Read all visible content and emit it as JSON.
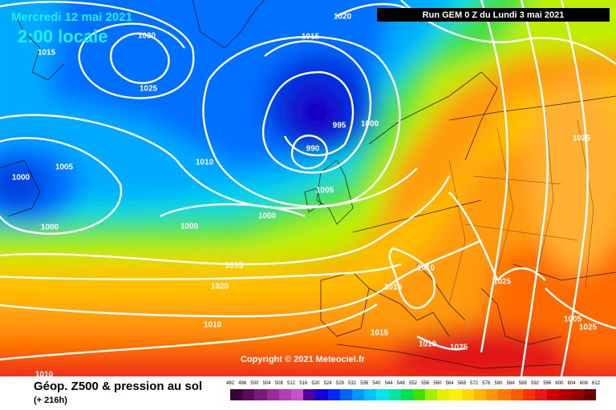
{
  "header": {
    "date": "Mercredi 12 mai 2021",
    "time": "2:00 locale",
    "run": "Run GEM 0 Z du Lundi 3 mai 2021"
  },
  "copyright": "Copyright © 2021 Meteociel.fr",
  "footer": {
    "title": "Géop. Z500 & pression au sol",
    "subtitle": "(+ 216h)"
  },
  "isobar_labels": [
    "1020",
    "1030",
    "1015",
    "1015",
    "1025",
    "995",
    "1000",
    "990",
    "1005",
    "1000",
    "1010",
    "1005",
    "1000",
    "1000",
    "1000",
    "1015",
    "1025",
    "1010",
    "1020",
    "1015",
    "1025",
    "1010",
    "1005",
    "1025",
    "1015",
    "1010",
    "1025",
    "1010"
  ],
  "scale": {
    "ticks": [
      "492",
      "496",
      "500",
      "504",
      "508",
      "512",
      "516",
      "520",
      "524",
      "528",
      "532",
      "536",
      "540",
      "544",
      "548",
      "552",
      "556",
      "560",
      "564",
      "568",
      "572",
      "576",
      "580",
      "584",
      "588",
      "592",
      "596",
      "600",
      "604",
      "608",
      "612"
    ],
    "colors": [
      "#3a003a",
      "#5a0a5a",
      "#7a1a7a",
      "#9a2a9a",
      "#b43cb4",
      "#c850c8",
      "#5000a0",
      "#1400d8",
      "#0028ff",
      "#0064ff",
      "#0096ff",
      "#00c0ff",
      "#00e6e6",
      "#00e6a0",
      "#00e050",
      "#40e000",
      "#a0f000",
      "#e6f000",
      "#fff000",
      "#ffd800",
      "#ffb400",
      "#ff9600",
      "#ff7800",
      "#ff5a00",
      "#ff3200",
      "#f01414",
      "#d20000",
      "#b40000",
      "#960000",
      "#6e0000"
    ]
  }
}
